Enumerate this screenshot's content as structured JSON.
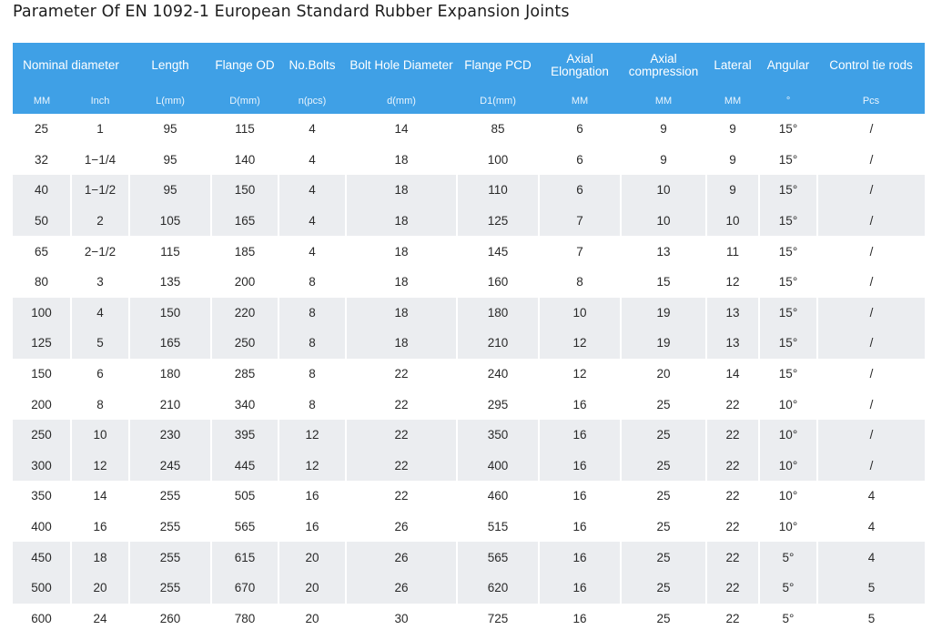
{
  "title": "Parameter Of EN 1092-1 European Standard Rubber Expansion Joints",
  "colors": {
    "header_bg": "#3fa0e6",
    "band_bg": "#ebedf0"
  },
  "table": {
    "headers": {
      "nominal_diameter": "Nominal diameter",
      "length": "Length",
      "flange_od": "Flange OD",
      "no_bolts": "No.Bolts",
      "bolt_hole_diameter": "Bolt Hole Diameter",
      "flange_pcd": "Flange PCD",
      "axial_elongation_1": "Axial",
      "axial_elongation_2": "Elongation",
      "axial_compression_1": "Axial",
      "axial_compression_2": "compression",
      "lateral": "Lateral",
      "angular": "Angular",
      "control_tie_rods": "Control tie rods"
    },
    "units": [
      "MM",
      "Inch",
      "L(mm)",
      "D(mm)",
      "n(pcs)",
      "d(mm)",
      "D1(mm)",
      "MM",
      "MM",
      "MM",
      "°",
      "Pcs"
    ],
    "rows": [
      [
        "25",
        "1",
        "95",
        "115",
        "4",
        "14",
        "85",
        "6",
        "9",
        "9",
        "15°",
        "/"
      ],
      [
        "32",
        "1−1/4",
        "95",
        "140",
        "4",
        "18",
        "100",
        "6",
        "9",
        "9",
        "15°",
        "/"
      ],
      [
        "40",
        "1−1/2",
        "95",
        "150",
        "4",
        "18",
        "110",
        "6",
        "10",
        "9",
        "15°",
        "/"
      ],
      [
        "50",
        "2",
        "105",
        "165",
        "4",
        "18",
        "125",
        "7",
        "10",
        "10",
        "15°",
        "/"
      ],
      [
        "65",
        "2−1/2",
        "115",
        "185",
        "4",
        "18",
        "145",
        "7",
        "13",
        "11",
        "15°",
        "/"
      ],
      [
        "80",
        "3",
        "135",
        "200",
        "8",
        "18",
        "160",
        "8",
        "15",
        "12",
        "15°",
        "/"
      ],
      [
        "100",
        "4",
        "150",
        "220",
        "8",
        "18",
        "180",
        "10",
        "19",
        "13",
        "15°",
        "/"
      ],
      [
        "125",
        "5",
        "165",
        "250",
        "8",
        "18",
        "210",
        "12",
        "19",
        "13",
        "15°",
        "/"
      ],
      [
        "150",
        "6",
        "180",
        "285",
        "8",
        "22",
        "240",
        "12",
        "20",
        "14",
        "15°",
        "/"
      ],
      [
        "200",
        "8",
        "210",
        "340",
        "8",
        "22",
        "295",
        "16",
        "25",
        "22",
        "10°",
        "/"
      ],
      [
        "250",
        "10",
        "230",
        "395",
        "12",
        "22",
        "350",
        "16",
        "25",
        "22",
        "10°",
        "/"
      ],
      [
        "300",
        "12",
        "245",
        "445",
        "12",
        "22",
        "400",
        "16",
        "25",
        "22",
        "10°",
        "/"
      ],
      [
        "350",
        "14",
        "255",
        "505",
        "16",
        "22",
        "460",
        "16",
        "25",
        "22",
        "10°",
        "4"
      ],
      [
        "400",
        "16",
        "255",
        "565",
        "16",
        "26",
        "515",
        "16",
        "25",
        "22",
        "10°",
        "4"
      ],
      [
        "450",
        "18",
        "255",
        "615",
        "20",
        "26",
        "565",
        "16",
        "25",
        "22",
        "5°",
        "4"
      ],
      [
        "500",
        "20",
        "255",
        "670",
        "20",
        "26",
        "620",
        "16",
        "25",
        "22",
        "5°",
        "5"
      ],
      [
        "600",
        "24",
        "260",
        "780",
        "20",
        "30",
        "725",
        "16",
        "25",
        "22",
        "5°",
        "5"
      ]
    ]
  }
}
